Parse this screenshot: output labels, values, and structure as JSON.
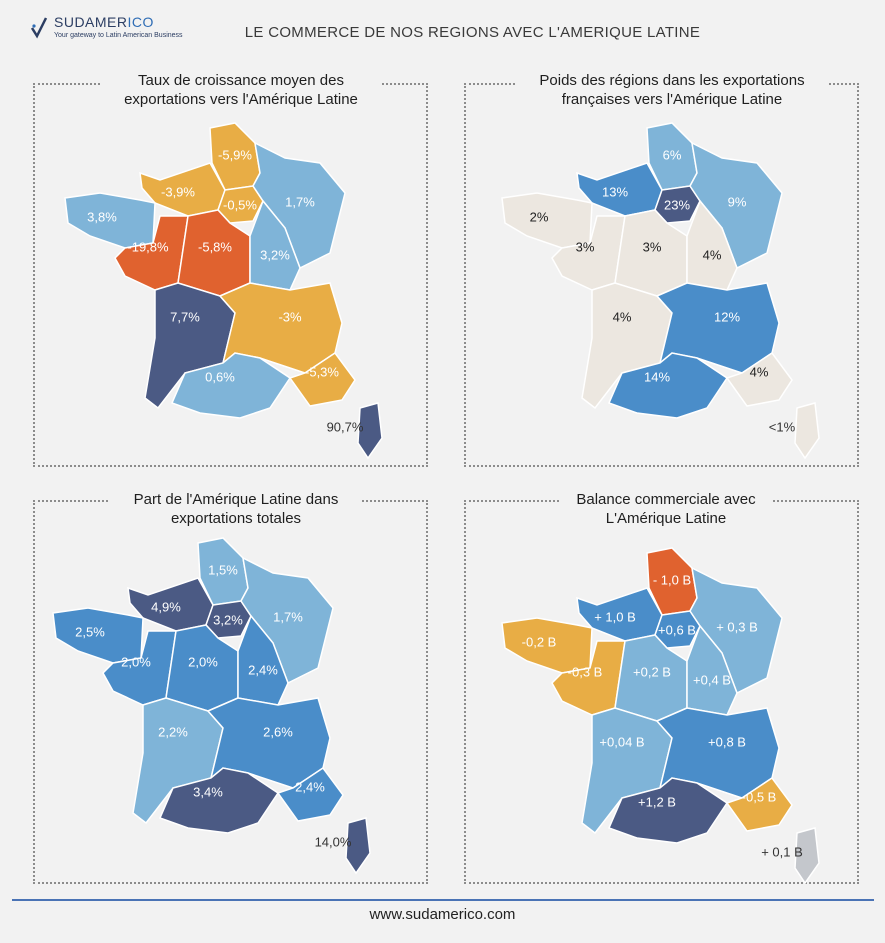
{
  "brand": {
    "name_part1": "SUDAMER",
    "name_part2": "ICO",
    "tagline": "Your gateway to Latin American Business"
  },
  "header": {
    "title": "LE COMMERCE DE NOS REGIONS AVEC L'AMERIQUE LATINE"
  },
  "colors": {
    "dark_navy": "#4b5a84",
    "medium_blue": "#4a8dc9",
    "light_blue": "#7fb4d8",
    "orange_red": "#e0622f",
    "yellow_orange": "#e8ad45",
    "beige": "#ece7e0",
    "grey": "#c4c7cc"
  },
  "panels": [
    {
      "title_line1": "Taux de croissance moyen des",
      "title_line2": "exportations vers l'Amérique Latine",
      "regions": {
        "hdf": {
          "label": "-5,9%",
          "color": "yellow_orange"
        },
        "normandie": {
          "label": "-3,9%",
          "color": "yellow_orange"
        },
        "idf": {
          "label": "-0,5%",
          "color": "yellow_orange"
        },
        "grand_est": {
          "label": "1,7%",
          "color": "light_blue"
        },
        "bretagne": {
          "label": "3,8%",
          "color": "light_blue"
        },
        "pays_de_la_loire": {
          "label": "-19,8%",
          "color": "orange_red"
        },
        "centre": {
          "label": "-5,8%",
          "color": "orange_red"
        },
        "bourgogne": {
          "label": "3,2%",
          "color": "light_blue"
        },
        "nouvelle_aquitaine": {
          "label": "7,7%",
          "color": "dark_navy"
        },
        "auvergne_rhone_alpes": {
          "label": "-3%",
          "color": "yellow_orange"
        },
        "occitanie": {
          "label": "0,6%",
          "color": "light_blue"
        },
        "paca": {
          "label": "-5,3%",
          "color": "yellow_orange"
        },
        "corse": {
          "label": "90,7%",
          "color": "dark_navy"
        }
      }
    },
    {
      "title_line1": "Poids des régions dans les exportations",
      "title_line2": "françaises vers l'Amérique Latine",
      "regions": {
        "hdf": {
          "label": "6%",
          "color": "light_blue"
        },
        "normandie": {
          "label": "13%",
          "color": "medium_blue"
        },
        "idf": {
          "label": "23%",
          "color": "dark_navy"
        },
        "grand_est": {
          "label": "9%",
          "color": "light_blue"
        },
        "bretagne": {
          "label": "2%",
          "color": "beige"
        },
        "pays_de_la_loire": {
          "label": "3%",
          "color": "beige"
        },
        "centre": {
          "label": "3%",
          "color": "beige"
        },
        "bourgogne": {
          "label": "4%",
          "color": "beige"
        },
        "nouvelle_aquitaine": {
          "label": "4%",
          "color": "beige"
        },
        "auvergne_rhone_alpes": {
          "label": "12%",
          "color": "medium_blue"
        },
        "occitanie": {
          "label": "14%",
          "color": "medium_blue"
        },
        "paca": {
          "label": "4%",
          "color": "beige"
        },
        "corse": {
          "label": "<1%",
          "color": "beige"
        }
      }
    },
    {
      "title_line1": "Part de l'Amérique Latine dans",
      "title_line2": "exportations totales",
      "regions": {
        "hdf": {
          "label": "1,5%",
          "color": "light_blue"
        },
        "normandie": {
          "label": "4,9%",
          "color": "dark_navy"
        },
        "idf": {
          "label": "3,2%",
          "color": "dark_navy"
        },
        "grand_est": {
          "label": "1,7%",
          "color": "light_blue"
        },
        "bretagne": {
          "label": "2,5%",
          "color": "medium_blue"
        },
        "pays_de_la_loire": {
          "label": "2,0%",
          "color": "medium_blue"
        },
        "centre": {
          "label": "2,0%",
          "color": "medium_blue"
        },
        "bourgogne": {
          "label": "2,4%",
          "color": "medium_blue"
        },
        "nouvelle_aquitaine": {
          "label": "2,2%",
          "color": "light_blue"
        },
        "auvergne_rhone_alpes": {
          "label": "2,6%",
          "color": "medium_blue"
        },
        "occitanie": {
          "label": "3,4%",
          "color": "dark_navy"
        },
        "paca": {
          "label": "2,4%",
          "color": "medium_blue"
        },
        "corse": {
          "label": "14,0%",
          "color": "dark_navy"
        }
      }
    },
    {
      "title_line1": "Balance commerciale avec",
      "title_line2": "L'Amérique Latine",
      "regions": {
        "hdf": {
          "label": "- 1,0 B",
          "color": "orange_red"
        },
        "normandie": {
          "label": "+ 1,0 B",
          "color": "medium_blue"
        },
        "idf": {
          "label": "+0,6 B",
          "color": "medium_blue"
        },
        "grand_est": {
          "label": "+ 0,3 B",
          "color": "light_blue"
        },
        "bretagne": {
          "label": "-0,2 B",
          "color": "yellow_orange"
        },
        "pays_de_la_loire": {
          "label": "-0,3 B",
          "color": "yellow_orange"
        },
        "centre": {
          "label": "+0,2 B",
          "color": "light_blue"
        },
        "bourgogne": {
          "label": "+0,4 B",
          "color": "light_blue"
        },
        "nouvelle_aquitaine": {
          "label": "+0,04 B",
          "color": "light_blue"
        },
        "auvergne_rhone_alpes": {
          "label": "+0,8 B",
          "color": "medium_blue"
        },
        "occitanie": {
          "label": "+1,2 B",
          "color": "dark_navy"
        },
        "paca": {
          "label": "-0,5 B",
          "color": "yellow_orange"
        },
        "corse": {
          "label": "+ 0,1 B",
          "color": "grey"
        }
      }
    }
  ],
  "footer": {
    "url": "www.sudamerico.com"
  }
}
